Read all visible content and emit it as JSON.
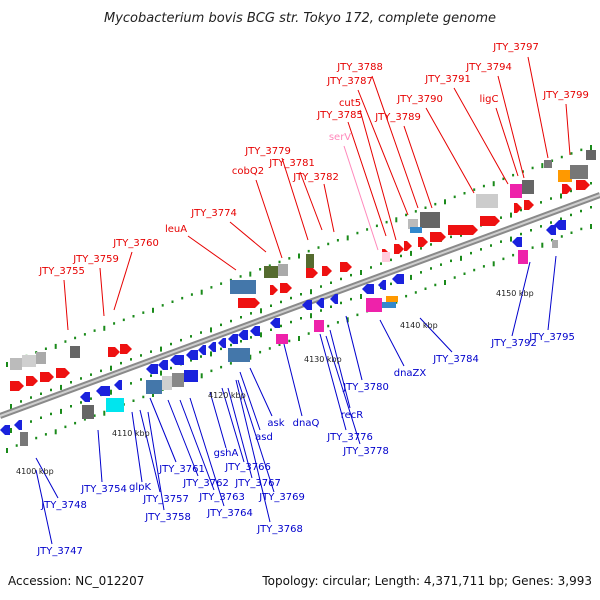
{
  "title": "Mycobacterium bovis BCG str. Tokyo 172, complete genome",
  "accession": "Accession: NC_012207",
  "topology": "Topology: circular; Length: 4,371,711 bp; Genes: 3,993",
  "colors": {
    "plus_strand_label": "#e60000",
    "minus_strand_label": "#0000cc",
    "rna_label": "#ff88bb",
    "backbone": "#9a9a9a",
    "tick": "#1a8a1a"
  },
  "scale_labels": [
    "4100 kbp",
    "4110 kbp",
    "4120 kbp",
    "4130 kbp",
    "4140 kbp",
    "4150 kbp"
  ],
  "plus_labels": [
    "JTY_3797",
    "JTY_3794",
    "JTY_3799",
    "JTY_3788",
    "JTY_3787",
    "JTY_3791",
    "cut5",
    "JTY_3790",
    "ligC",
    "JTY_3785",
    "JTY_3789",
    "serV",
    "JTY_3779",
    "cobQ2",
    "JTY_3781",
    "JTY_3782",
    "JTY_3774",
    "leuA",
    "JTY_3760",
    "JTY_3759",
    "JTY_3755"
  ],
  "minus_labels": [
    "JTY_3795",
    "JTY_3792",
    "JTY_3784",
    "dnaZX",
    "JTY_3780",
    "recR",
    "JTY_3776",
    "JTY_3778",
    "dnaQ",
    "ask",
    "asd",
    "gshA",
    "JTY_3766",
    "JTY_3761",
    "JTY_3767",
    "JTY_3762",
    "JTY_3769",
    "JTY_3763",
    "JTY_3764",
    "JTY_3768",
    "glpK",
    "JTY_3757",
    "JTY_3758",
    "JTY_3754",
    "JTY_3748",
    "JTY_3747"
  ]
}
